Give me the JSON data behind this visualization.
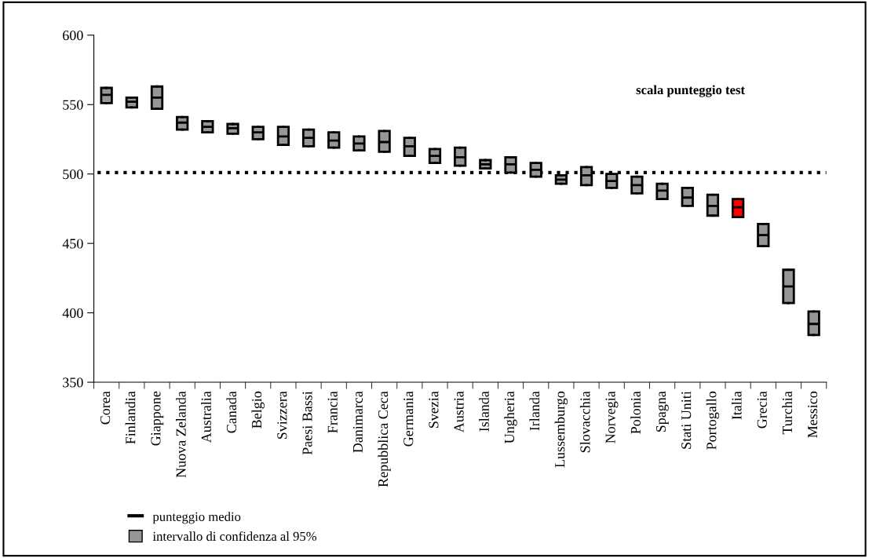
{
  "chart_data": {
    "type": "box",
    "categories": [
      "Corea",
      "Finlandia",
      "Giappone",
      "Nuova Zelanda",
      "Australia",
      "Canada",
      "Belgio",
      "Svizzera",
      "Paesi Bassi",
      "Francia",
      "Danimarca",
      "Repubblica Ceca",
      "Germania",
      "Svezia",
      "Austria",
      "Islanda",
      "Ungheria",
      "Irlanda",
      "Lussemburgo",
      "Slovacchia",
      "Norvegia",
      "Polonia",
      "Spagna",
      "Stati Uniti",
      "Portogallo",
      "Italia",
      "Grecia",
      "Turchia",
      "Messico"
    ],
    "series": [
      {
        "name": "intervallo di confidenza al 95%",
        "color": "#969696",
        "colors": [
          "#969696",
          "#969696",
          "#969696",
          "#969696",
          "#969696",
          "#969696",
          "#969696",
          "#969696",
          "#969696",
          "#969696",
          "#969696",
          "#969696",
          "#969696",
          "#969696",
          "#969696",
          "#969696",
          "#969696",
          "#969696",
          "#969696",
          "#969696",
          "#969696",
          "#969696",
          "#969696",
          "#969696",
          "#969696",
          "#ff0000",
          "#969696",
          "#969696",
          "#969696"
        ],
        "boxes": [
          {
            "low": 551,
            "q1": 551,
            "median": 557,
            "q3": 562,
            "high": 562
          },
          {
            "low": 548,
            "q1": 548,
            "median": 552,
            "q3": 555,
            "high": 555
          },
          {
            "low": 547,
            "q1": 547,
            "median": 555,
            "q3": 563,
            "high": 563
          },
          {
            "low": 532,
            "q1": 532,
            "median": 537,
            "q3": 541,
            "high": 541
          },
          {
            "low": 530,
            "q1": 530,
            "median": 534,
            "q3": 538,
            "high": 538
          },
          {
            "low": 529,
            "q1": 529,
            "median": 533,
            "q3": 536,
            "high": 536
          },
          {
            "low": 525,
            "q1": 525,
            "median": 530,
            "q3": 534,
            "high": 534
          },
          {
            "low": 521,
            "q1": 521,
            "median": 527,
            "q3": 534,
            "high": 534
          },
          {
            "low": 520,
            "q1": 520,
            "median": 526,
            "q3": 532,
            "high": 532
          },
          {
            "low": 519,
            "q1": 519,
            "median": 524,
            "q3": 530,
            "high": 530
          },
          {
            "low": 517,
            "q1": 517,
            "median": 522,
            "q3": 527,
            "high": 527
          },
          {
            "low": 516,
            "q1": 516,
            "median": 523,
            "q3": 531,
            "high": 531
          },
          {
            "low": 513,
            "q1": 513,
            "median": 520,
            "q3": 526,
            "high": 526
          },
          {
            "low": 508,
            "q1": 508,
            "median": 513,
            "q3": 518,
            "high": 518
          },
          {
            "low": 506,
            "q1": 506,
            "median": 512,
            "q3": 519,
            "high": 519
          },
          {
            "low": 504,
            "q1": 504,
            "median": 507,
            "q3": 510,
            "high": 510
          },
          {
            "low": 501,
            "q1": 501,
            "median": 507,
            "q3": 512,
            "high": 512
          },
          {
            "low": 498,
            "q1": 498,
            "median": 503,
            "q3": 508,
            "high": 508
          },
          {
            "low": 493,
            "q1": 493,
            "median": 496,
            "q3": 499,
            "high": 499
          },
          {
            "low": 492,
            "q1": 492,
            "median": 499,
            "q3": 505,
            "high": 505
          },
          {
            "low": 490,
            "q1": 490,
            "median": 495,
            "q3": 500,
            "high": 500
          },
          {
            "low": 486,
            "q1": 486,
            "median": 492,
            "q3": 498,
            "high": 498
          },
          {
            "low": 482,
            "q1": 482,
            "median": 488,
            "q3": 493,
            "high": 493
          },
          {
            "low": 477,
            "q1": 477,
            "median": 483,
            "q3": 490,
            "high": 490
          },
          {
            "low": 470,
            "q1": 470,
            "median": 477,
            "q3": 485,
            "high": 485
          },
          {
            "low": 469,
            "q1": 469,
            "median": 476,
            "q3": 482,
            "high": 482
          },
          {
            "low": 448,
            "q1": 448,
            "median": 456,
            "q3": 464,
            "high": 464
          },
          {
            "low": 407,
            "q1": 407,
            "median": 419,
            "q3": 431,
            "high": 431
          },
          {
            "low": 384,
            "q1": 384,
            "median": 392,
            "q3": 401,
            "high": 401
          }
        ]
      }
    ],
    "ylim": [
      350,
      600
    ],
    "yticks": [
      350,
      400,
      450,
      500,
      550,
      600
    ],
    "ref_lines": [
      {
        "axis": "y",
        "value": 501,
        "color": "#000000",
        "line_style": "dotted"
      }
    ],
    "annotations": [
      "scala punteggio test",
      "punteggio medio"
    ],
    "legend": "bottom left",
    "grid": false
  }
}
